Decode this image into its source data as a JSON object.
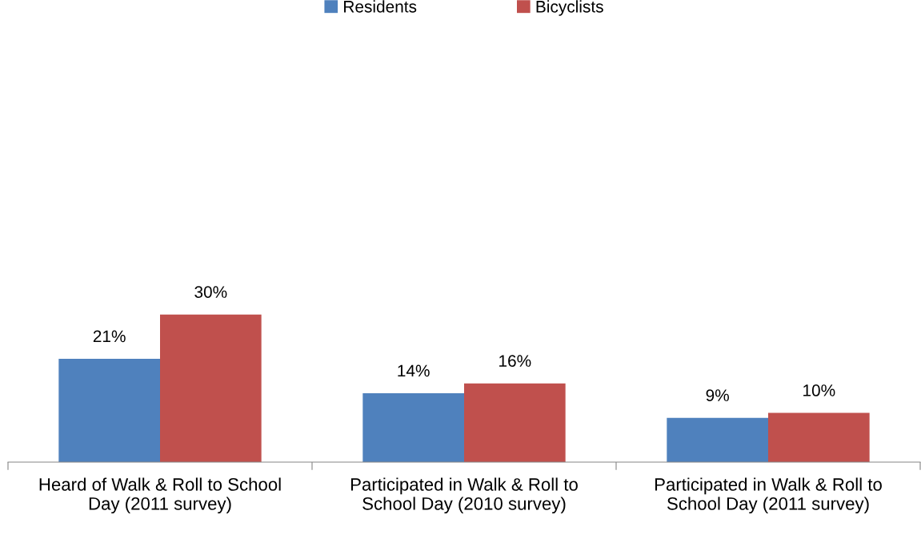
{
  "chart_data": {
    "type": "bar",
    "categories": [
      "Heard of Walk & Roll to School Day (2011 survey)",
      "Participated in Walk & Roll to School Day (2010 survey)",
      "Participated in Walk & Roll to School Day (2011 survey)"
    ],
    "series": [
      {
        "name": "Residents",
        "color": "#4f81bd",
        "values": [
          21,
          14,
          9
        ],
        "value_labels": [
          "21%",
          "14%",
          "9%"
        ]
      },
      {
        "name": "Bicyclists",
        "color": "#c0504d",
        "values": [
          30,
          16,
          10
        ],
        "value_labels": [
          "30%",
          "16%",
          "10%"
        ]
      }
    ],
    "legend": "top",
    "grid": false
  }
}
